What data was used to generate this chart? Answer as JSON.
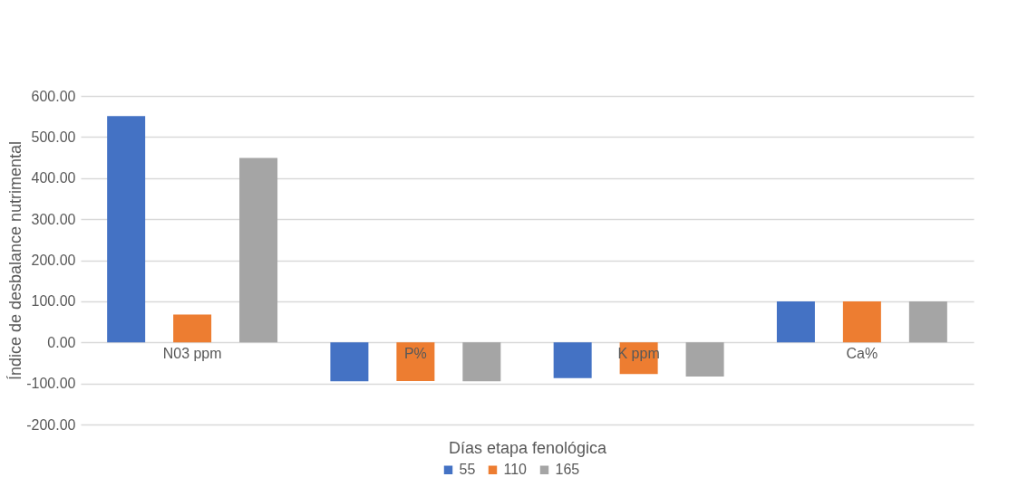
{
  "chart_data": {
    "type": "bar",
    "xlabel": "Días etapa fenológica",
    "ylabel": "Índice de desbalance nutrimental",
    "categories": [
      "N03 ppm",
      "P%",
      "K ppm",
      "Ca%"
    ],
    "series": [
      {
        "name": "55",
        "color": "#4472c4",
        "values": [
          551,
          -95,
          -87,
          100
        ]
      },
      {
        "name": "110",
        "color": "#ed7d31",
        "values": [
          68,
          -94,
          -77,
          100
        ]
      },
      {
        "name": "165",
        "color": "#a5a5a5",
        "values": [
          449,
          -95,
          -83,
          100
        ]
      }
    ],
    "ylim": [
      -200,
      600
    ],
    "yticks": [
      {
        "value": -200,
        "label": "-200.00"
      },
      {
        "value": -100,
        "label": "-100.00"
      },
      {
        "value": 0,
        "label": "0.00"
      },
      {
        "value": 100,
        "label": "100.00"
      },
      {
        "value": 200,
        "label": "200.00"
      },
      {
        "value": 300,
        "label": "300.00"
      },
      {
        "value": 400,
        "label": "400.00"
      },
      {
        "value": 500,
        "label": "500.00"
      },
      {
        "value": 600,
        "label": "600.00"
      }
    ],
    "grid": "y",
    "legend": "bottom"
  }
}
